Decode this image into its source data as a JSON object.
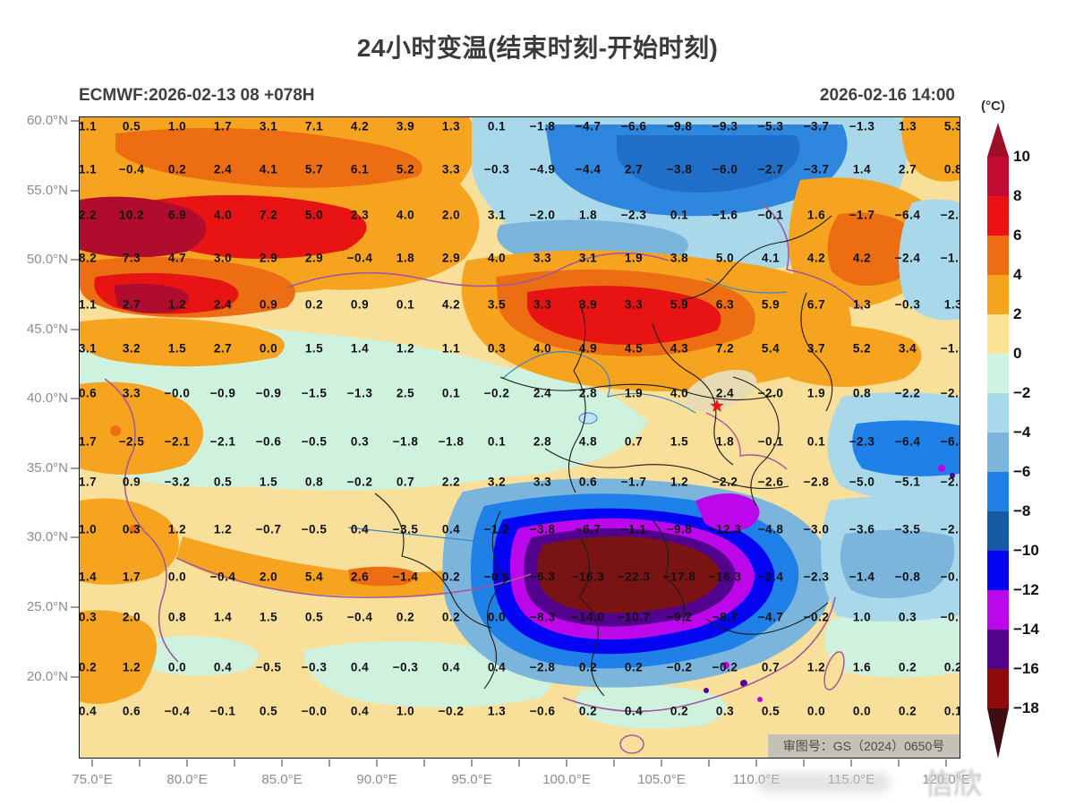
{
  "header": {
    "title": "24小时变温(结束时刻-开始时刻)",
    "model_run": "ECMWF:2026-02-13 08 +078H",
    "valid_time": "2026-02-16 14:00"
  },
  "map": {
    "license_label": "审图号：GS（2024）0650号",
    "star_marker": "★",
    "watermark": "信欣"
  },
  "colorbar": {
    "unit_label": "(°C)",
    "tick_labels": [
      "10",
      "8",
      "6",
      "4",
      "2",
      "0",
      "-2",
      "-4",
      "-6",
      "-8",
      "-10",
      "-12",
      "-14",
      "-16",
      "-18"
    ],
    "segment_colors": [
      "#C20B30",
      "#EB1115",
      "#ED6E12",
      "#F7A41D",
      "#FBE393",
      "#CFF4E3",
      "#A9DAEB",
      "#7CB5DC",
      "#1F80E8",
      "#1659A5",
      "#0404F2",
      "#BB07E9",
      "#52028C",
      "#8F0B0B"
    ],
    "above_max_color": "#9E0E26",
    "below_min_color": "#420D12"
  },
  "axes": {
    "lat_labels": [
      "60.0°N",
      "55.0°N",
      "50.0°N",
      "45.0°N",
      "40.0°N",
      "35.0°N",
      "30.0°N",
      "25.0°N",
      "20.0°N"
    ],
    "lon_labels": [
      "75.0°E",
      "80.0°E",
      "85.0°E",
      "90.0°E",
      "95.0°E",
      "100.0°E",
      "105.0°E",
      "110.0°E",
      "115.0°E",
      "120.0°E"
    ]
  },
  "chart_data": {
    "type": "heatmap",
    "title": "24小时变温(结束时刻-开始时刻)",
    "unit": "°C",
    "model_run": "ECMWF:2026-02-13 08 +078H",
    "valid_time": "2026-02-16 14:00",
    "legend_position": "right",
    "colorbar_levels": [
      10,
      8,
      6,
      4,
      2,
      0,
      -2,
      -4,
      -6,
      -8,
      -10,
      -12,
      -14,
      -16,
      -18
    ],
    "lat_tick_labels": [
      "60.0°N",
      "55.0°N",
      "50.0°N",
      "45.0°N",
      "40.0°N",
      "35.0°N",
      "30.0°N",
      "25.0°N",
      "20.0°N"
    ],
    "lon_tick_labels": [
      "75.0°E",
      "80.0°E",
      "85.0°E",
      "90.0°E",
      "95.0°E",
      "100.0°E",
      "105.0°E",
      "110.0°E",
      "115.0°E",
      "120.0°E"
    ],
    "grid_values": [
      [
        "1.1",
        "0.5",
        "1.0",
        "1.7",
        "3.1",
        "7.1",
        "4.2",
        "3.9",
        "1.3",
        "0.1",
        "-1.8",
        "-4.7",
        "-6.6",
        "-9.8",
        "-9.3",
        "-5.3",
        "-3.7",
        "-1.3",
        "1.3",
        "5.3"
      ],
      [
        "1.1",
        "-0.4",
        "0.2",
        "2.4",
        "4.1",
        "5.7",
        "6.1",
        "5.2",
        "3.3",
        "-0.3",
        "-4.9",
        "-4.4",
        "2.7",
        "-3.8",
        "-6.0",
        "-2.7",
        "-3.7",
        "1.4",
        "2.7",
        "0.8"
      ],
      [
        "2.2",
        "10.2",
        "6.9",
        "4.0",
        "7.2",
        "5.0",
        "2.3",
        "4.0",
        "2.0",
        "3.1",
        "-2.0",
        "1.8",
        "-2.3",
        "0.1",
        "-1.6",
        "-0.1",
        "1.6",
        "-1.7",
        "-6.4",
        "-2.3"
      ],
      [
        "8.2",
        "7.3",
        "4.7",
        "3.0",
        "2.9",
        "2.9",
        "-0.4",
        "1.8",
        "2.9",
        "4.0",
        "3.3",
        "3.1",
        "1.9",
        "3.8",
        "5.0",
        "4.1",
        "4.2",
        "4.2",
        "-2.4",
        "-1.7"
      ],
      [
        "1.1",
        "2.7",
        "1.2",
        "2.4",
        "0.9",
        "0.2",
        "0.9",
        "0.1",
        "4.2",
        "3.5",
        "3.3",
        "3.9",
        "3.3",
        "5.9",
        "6.3",
        "5.9",
        "6.7",
        "1.3",
        "-0.3",
        "1.3"
      ],
      [
        "3.1",
        "3.2",
        "1.5",
        "2.7",
        "0.0",
        "1.5",
        "1.4",
        "1.2",
        "1.1",
        "0.3",
        "4.0",
        "4.9",
        "4.5",
        "4.3",
        "7.2",
        "5.4",
        "3.7",
        "5.2",
        "3.4",
        "-1.0"
      ],
      [
        "0.6",
        "3.3",
        "-0.0",
        "-0.9",
        "-0.9",
        "-1.5",
        "-1.3",
        "2.5",
        "0.1",
        "-0.2",
        "2.4",
        "2.8",
        "1.9",
        "4.0",
        "2.4",
        "-2.0",
        "1.9",
        "0.8",
        "-2.2",
        "-2.9"
      ],
      [
        "1.7",
        "-2.5",
        "-2.1",
        "-2.1",
        "-0.6",
        "-0.5",
        "0.3",
        "-1.8",
        "-1.8",
        "0.1",
        "2.8",
        "4.8",
        "0.7",
        "1.5",
        "1.8",
        "-0.1",
        "0.1",
        "-2.3",
        "-6.4",
        "-6.4"
      ],
      [
        "1.7",
        "0.9",
        "-3.2",
        "0.5",
        "1.5",
        "0.8",
        "-0.2",
        "0.7",
        "2.2",
        "3.2",
        "3.3",
        "0.6",
        "-1.7",
        "1.2",
        "-2.2",
        "-2.6",
        "-2.8",
        "-5.0",
        "-5.1",
        "-2.0"
      ],
      [
        "1.0",
        "0.3",
        "1.2",
        "1.2",
        "-0.7",
        "-0.5",
        "0.4",
        "-3.5",
        "0.4",
        "-1.2",
        "-3.8",
        "-6.7",
        "-1.1",
        "-9.8",
        "-12.3",
        "-4.8",
        "-3.0",
        "-3.6",
        "-3.5",
        "-2.1"
      ],
      [
        "1.4",
        "1.7",
        "0.0",
        "-0.4",
        "2.0",
        "5.4",
        "2.6",
        "-1.4",
        "0.2",
        "-0.6",
        "-6.3",
        "-16.3",
        "-22.3",
        "-17.8",
        "-16.3",
        "-2.4",
        "-2.3",
        "-1.4",
        "-0.8",
        "-0.6"
      ],
      [
        "0.3",
        "2.0",
        "0.8",
        "1.4",
        "1.5",
        "0.5",
        "-0.4",
        "0.2",
        "0.2",
        "0.0",
        "-8.3",
        "-14.0",
        "-10.7",
        "-9.2",
        "-8.7",
        "-4.7",
        "-0.2",
        "1.0",
        "0.3",
        "-0.7"
      ],
      [
        "0.2",
        "1.2",
        "0.0",
        "0.4",
        "-0.5",
        "-0.3",
        "0.4",
        "-0.3",
        "0.4",
        "0.4",
        "-2.8",
        "0.2",
        "0.2",
        "-0.2",
        "-0.2",
        "0.7",
        "1.2",
        "1.6",
        "0.2",
        "0.2"
      ],
      [
        "0.4",
        "0.6",
        "-0.4",
        "-0.1",
        "0.5",
        "-0.0",
        "0.4",
        "1.0",
        "-0.2",
        "1.3",
        "-0.6",
        "0.2",
        "0.4",
        "0.2",
        "0.3",
        "0.5",
        "0.0",
        "0.0",
        "0.2",
        "0.1"
      ]
    ]
  }
}
